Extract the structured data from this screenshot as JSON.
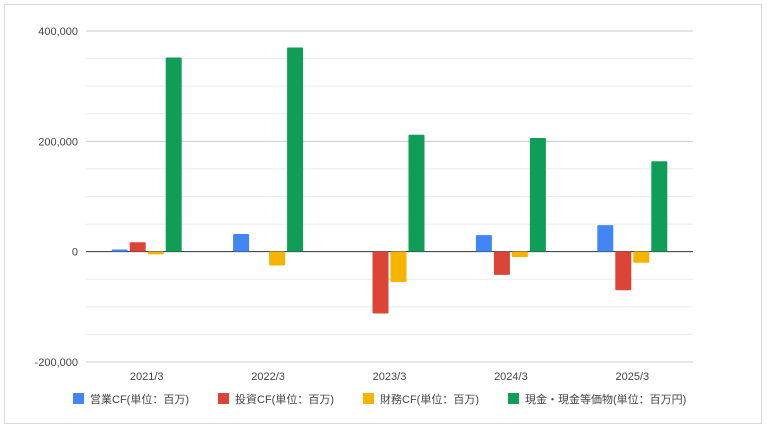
{
  "chart_data": {
    "type": "bar",
    "categories": [
      "2021/3",
      "2022/3",
      "2023/3",
      "2024/3",
      "2025/3"
    ],
    "series": [
      {
        "name": "営業CF(単位：百万)",
        "color": "#4285f4",
        "values": [
          4000,
          32000,
          0,
          30000,
          48000
        ]
      },
      {
        "name": "投資CF(単位：百万)",
        "color": "#db4437",
        "values": [
          17000,
          0,
          -112000,
          -42000,
          -70000
        ]
      },
      {
        "name": "財務CF(単位：百万)",
        "color": "#f4b400",
        "values": [
          -5000,
          -25000,
          -55000,
          -10000,
          -20000
        ]
      },
      {
        "name": "現金・現金等価物(単位：百万円)",
        "color": "#0f9d58",
        "values": [
          352000,
          370000,
          212000,
          206000,
          164000
        ]
      }
    ],
    "ylim": [
      -200000,
      400000
    ],
    "yticks": [
      "400,000",
      "200,000",
      "0",
      "-200,000"
    ],
    "ytick_values": [
      400000,
      200000,
      0,
      -200000
    ],
    "grid": true,
    "legend": "bottom"
  }
}
